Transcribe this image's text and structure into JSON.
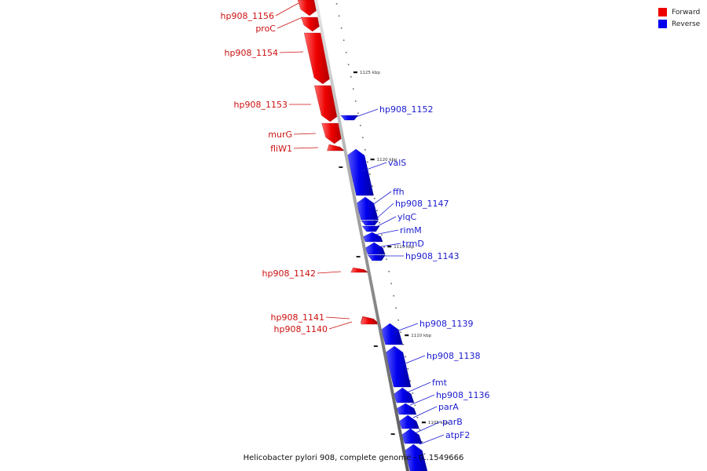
{
  "caption": "Helicobacter pylori 908, complete genome - 0..1549666",
  "legend": [
    {
      "label": "Forward",
      "color": "#ee0000"
    },
    {
      "label": "Reverse",
      "color": "#0000ee"
    }
  ],
  "ticks": [
    "1125 kbp",
    "1120 kbp",
    "1115 kbp",
    "1110 kbp",
    "1105 kbp"
  ],
  "genes": [
    {
      "name": "hp908_1156",
      "strand": "forward"
    },
    {
      "name": "proC",
      "strand": "forward"
    },
    {
      "name": "hp908_1154",
      "strand": "forward"
    },
    {
      "name": "hp908_1153",
      "strand": "forward"
    },
    {
      "name": "hp908_1152",
      "strand": "reverse"
    },
    {
      "name": "murG",
      "strand": "forward"
    },
    {
      "name": "fliW1",
      "strand": "forward"
    },
    {
      "name": "valS",
      "strand": "reverse"
    },
    {
      "name": "ffh",
      "strand": "reverse"
    },
    {
      "name": "hp908_1147",
      "strand": "reverse"
    },
    {
      "name": "ylqC",
      "strand": "reverse"
    },
    {
      "name": "rimM",
      "strand": "reverse"
    },
    {
      "name": "trmD",
      "strand": "reverse"
    },
    {
      "name": "hp908_1143",
      "strand": "reverse"
    },
    {
      "name": "hp908_1142",
      "strand": "forward"
    },
    {
      "name": "hp908_1141",
      "strand": "forward"
    },
    {
      "name": "hp908_1140",
      "strand": "forward"
    },
    {
      "name": "hp908_1139",
      "strand": "reverse"
    },
    {
      "name": "hp908_1138",
      "strand": "reverse"
    },
    {
      "name": "fmt",
      "strand": "reverse"
    },
    {
      "name": "hp908_1136",
      "strand": "reverse"
    },
    {
      "name": "parA",
      "strand": "reverse"
    },
    {
      "name": "parB",
      "strand": "reverse"
    },
    {
      "name": "atpF2",
      "strand": "reverse"
    }
  ]
}
